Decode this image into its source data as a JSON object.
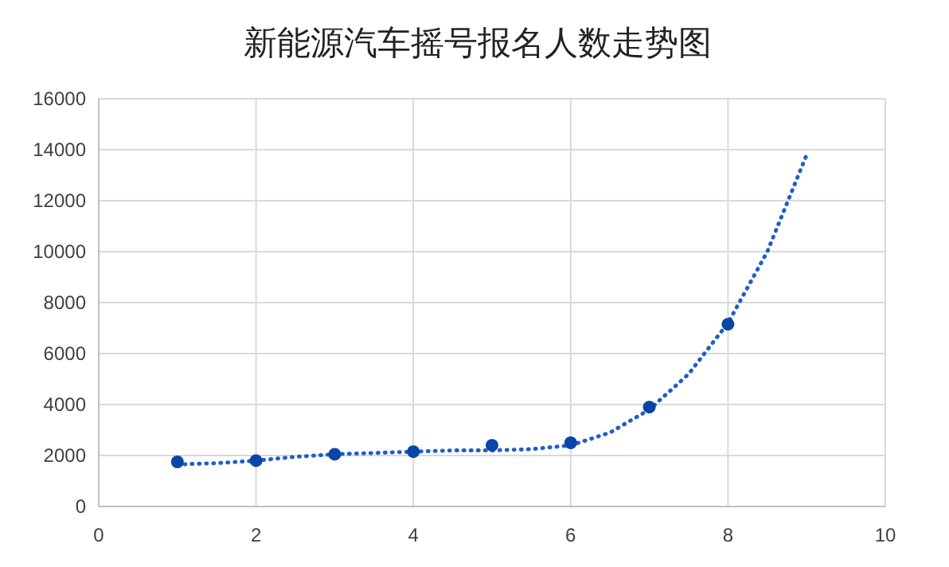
{
  "chart_data": {
    "type": "scatter",
    "title": "新能源汽车摇号报名人数走势图",
    "xlim": [
      0,
      10
    ],
    "xticks": [
      0,
      2,
      4,
      6,
      8,
      10
    ],
    "ylim": [
      0,
      16000
    ],
    "yticks": [
      0,
      2000,
      4000,
      6000,
      8000,
      10000,
      12000,
      14000,
      16000
    ],
    "grid": true,
    "series": [
      {
        "color": "#0a45a8",
        "marker": "circle",
        "x": [
          1,
          2,
          3,
          4,
          5,
          6,
          7,
          8
        ],
        "values": [
          1750,
          1800,
          2050,
          2150,
          2400,
          2500,
          3900,
          7150
        ]
      },
      {
        "type": "line",
        "color": "#1f5fc4",
        "line_style": "dotted",
        "x": [
          1,
          1.5,
          2,
          2.5,
          3,
          3.5,
          4,
          4.5,
          5,
          5.5,
          6,
          6.5,
          7,
          7.5,
          8,
          8.5,
          9
        ],
        "values": [
          1650,
          1700,
          1800,
          1950,
          2050,
          2100,
          2150,
          2200,
          2200,
          2250,
          2400,
          2900,
          3800,
          5200,
          7200,
          10000,
          13800
        ]
      }
    ]
  }
}
